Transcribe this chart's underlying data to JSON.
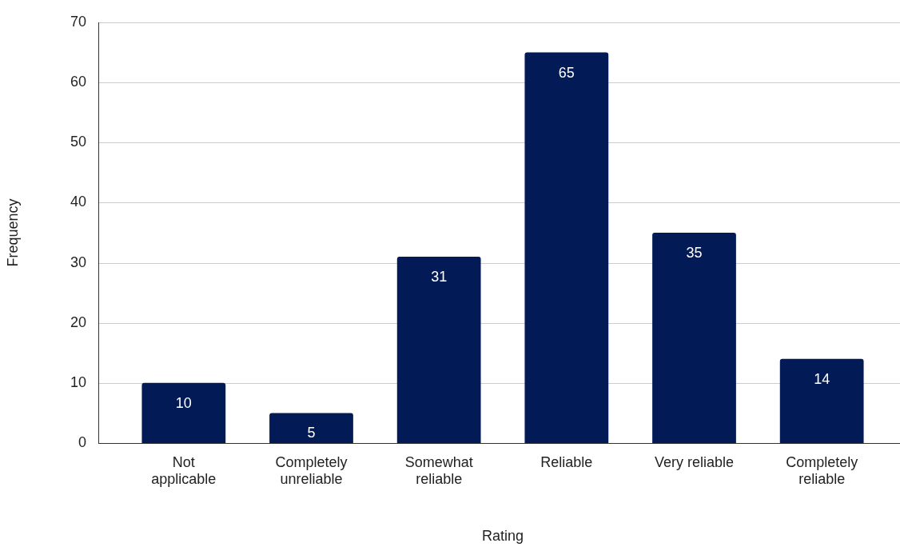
{
  "chart_data": {
    "type": "bar",
    "xlabel": "Rating",
    "ylabel": "Frequency",
    "categories": [
      "Not applicable",
      "Completely unreliable",
      "Somewhat reliable",
      "Reliable",
      "Very reliable",
      "Completely reliable"
    ],
    "values": [
      10,
      5,
      31,
      65,
      35,
      14
    ],
    "color": "#021b56",
    "ylim": [
      0,
      70
    ],
    "yticks": [
      0,
      10,
      20,
      30,
      40,
      50,
      60,
      70
    ],
    "grid": "y",
    "data_labels": true
  }
}
